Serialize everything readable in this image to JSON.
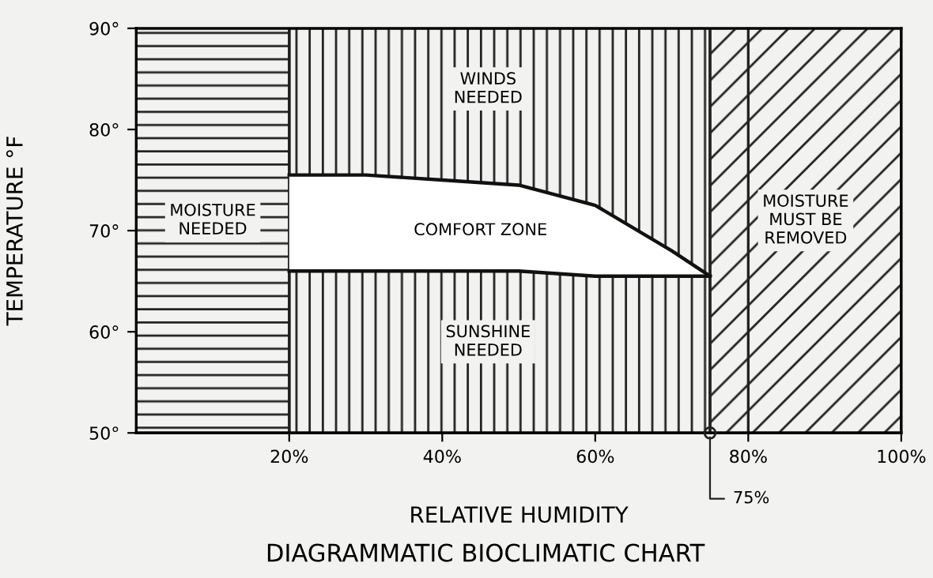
{
  "chart_data": {
    "type": "area",
    "title": "DIAGRAMMATIC BIOCLIMATIC CHART",
    "xlabel": "RELATIVE HUMIDITY",
    "ylabel": "TEMPERATURE °F",
    "xlim": [
      0,
      100
    ],
    "ylim": [
      50,
      90
    ],
    "xticks": [
      {
        "value": 20,
        "label": "20%"
      },
      {
        "value": 40,
        "label": "40%"
      },
      {
        "value": 60,
        "label": "60%"
      },
      {
        "value": 80,
        "label": "80%"
      },
      {
        "value": 100,
        "label": "100%"
      }
    ],
    "yticks": [
      {
        "value": 50,
        "label": "50°"
      },
      {
        "value": 60,
        "label": "60°"
      },
      {
        "value": 70,
        "label": "70°"
      },
      {
        "value": 80,
        "label": "80°"
      },
      {
        "value": 90,
        "label": "90°"
      }
    ],
    "series": [
      {
        "color": "#ffffff",
        "x": [
          20,
          30,
          40,
          50,
          60,
          70,
          75
        ],
        "values": [
          75.5,
          75.5,
          75,
          74.5,
          72.5,
          68,
          65.5
        ]
      },
      {
        "type": "line",
        "color": "#111111",
        "x": [
          20,
          30,
          40,
          50,
          60,
          70,
          75
        ],
        "values": [
          66,
          66,
          66,
          66,
          65.5,
          65.5,
          65.5
        ]
      }
    ],
    "bands": [
      {
        "axis": "x",
        "from": 0,
        "to": 20,
        "label": "MOISTURE\nNEEDED",
        "color": "#222222"
      },
      {
        "axis": "x",
        "from": 20,
        "to": 75,
        "label": null,
        "color": "#222222"
      },
      {
        "axis": "x",
        "from": 75,
        "to": 100,
        "label": "MOISTURE\nMUST BE\nREMOVED",
        "color": "#222222"
      }
    ],
    "ref_lines": [
      {
        "axis": "x",
        "value": 80,
        "label": null,
        "color": "#222222"
      }
    ],
    "annotations": [
      "WINDS\nNEEDED",
      "COMFORT ZONE",
      "SUNSHINE\nNEEDED",
      {
        "text": "75%",
        "x": 75,
        "y": 50
      }
    ],
    "grid": false
  }
}
